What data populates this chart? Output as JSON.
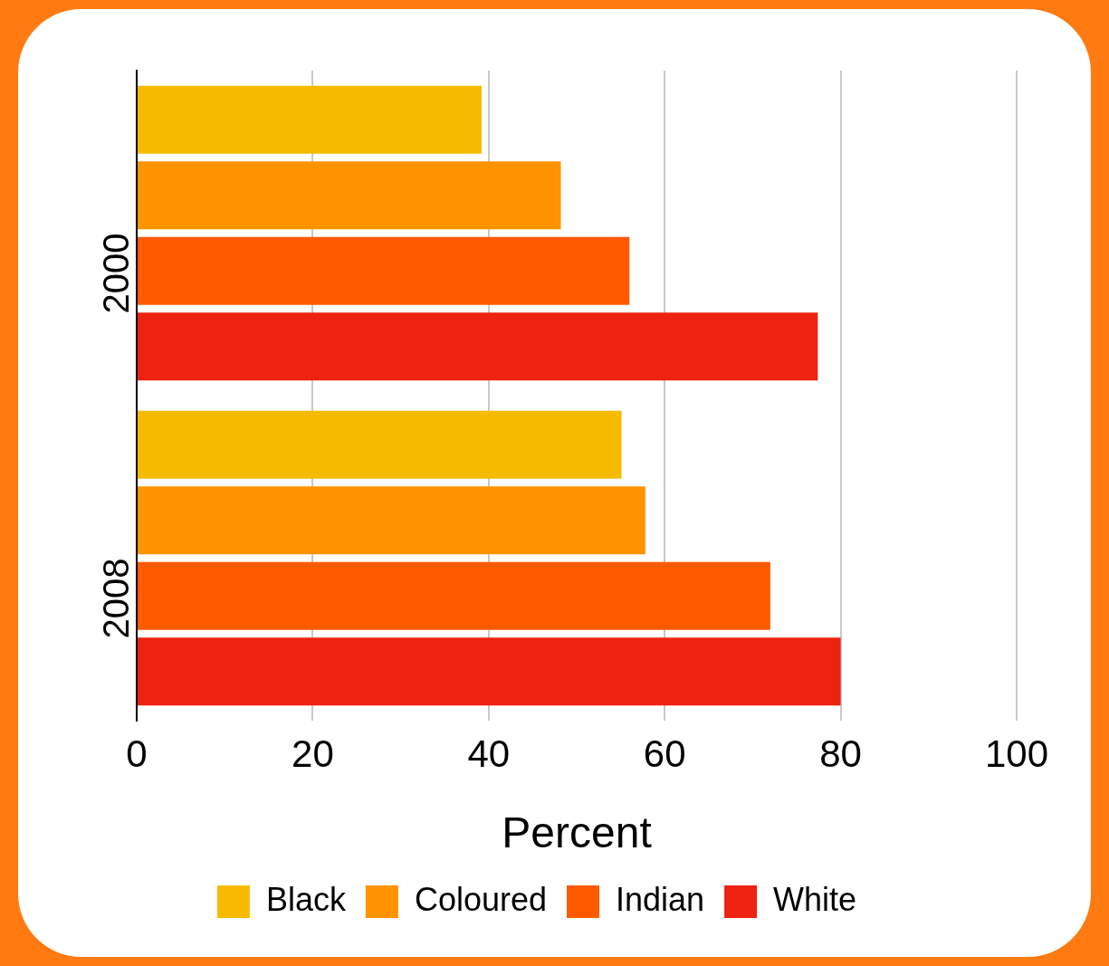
{
  "chart_data": {
    "type": "bar",
    "orientation": "horizontal",
    "xlabel": "Percent",
    "categories": [
      "2000",
      "2008"
    ],
    "series": [
      {
        "name": "Black",
        "color": "#f6bb00",
        "values": [
          39.2,
          55.1
        ]
      },
      {
        "name": "Coloured",
        "color": "#ff9300",
        "values": [
          48.2,
          57.8
        ]
      },
      {
        "name": "Indian",
        "color": "#ff5a00",
        "values": [
          56,
          72
        ]
      },
      {
        "name": "White",
        "color": "#ee2211",
        "values": [
          77.4,
          80
        ]
      }
    ],
    "xlim": [
      0,
      100
    ],
    "xticks": [
      0,
      20,
      40,
      60,
      80,
      100
    ],
    "grid": "x",
    "legend": "bottom"
  }
}
